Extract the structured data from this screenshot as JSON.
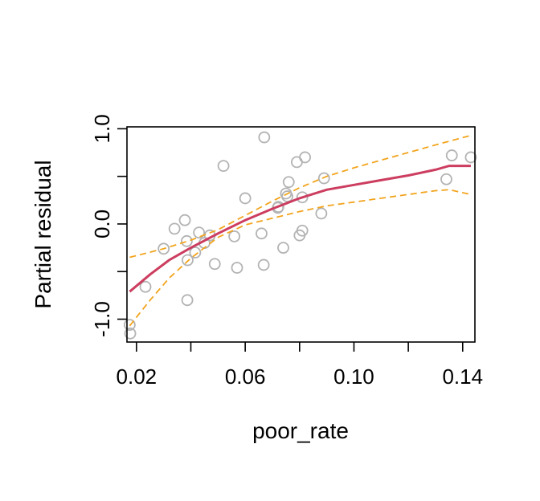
{
  "chart_data": {
    "type": "scatter",
    "xlabel": "poor_rate",
    "ylabel": "Partial residual",
    "xlim": [
      0.0165,
      0.1445
    ],
    "ylim": [
      -1.24,
      1.02
    ],
    "x_ticks": [
      0.02,
      0.04,
      0.06,
      0.08,
      0.1,
      0.12,
      0.14
    ],
    "x_tick_labels": [
      "0.02",
      "",
      "0.06",
      "",
      "0.10",
      "",
      "0.14"
    ],
    "y_ticks": [
      -1.0,
      -0.5,
      0.0,
      0.5,
      1.0
    ],
    "y_tick_labels": [
      "-1.0",
      "",
      "0.0",
      "",
      "1.0"
    ],
    "points": [
      {
        "x": 0.0175,
        "y": -1.06
      },
      {
        "x": 0.0177,
        "y": -1.15
      },
      {
        "x": 0.0233,
        "y": -0.66
      },
      {
        "x": 0.03,
        "y": -0.26
      },
      {
        "x": 0.034,
        "y": -0.05
      },
      {
        "x": 0.0378,
        "y": 0.04
      },
      {
        "x": 0.0385,
        "y": -0.18
      },
      {
        "x": 0.0387,
        "y": -0.8
      },
      {
        "x": 0.0388,
        "y": -0.38
      },
      {
        "x": 0.0416,
        "y": -0.3
      },
      {
        "x": 0.043,
        "y": -0.09
      },
      {
        "x": 0.045,
        "y": -0.2
      },
      {
        "x": 0.047,
        "y": -0.12
      },
      {
        "x": 0.0488,
        "y": -0.42
      },
      {
        "x": 0.052,
        "y": 0.61
      },
      {
        "x": 0.056,
        "y": -0.13
      },
      {
        "x": 0.057,
        "y": -0.46
      },
      {
        "x": 0.06,
        "y": 0.27
      },
      {
        "x": 0.066,
        "y": -0.1
      },
      {
        "x": 0.0668,
        "y": -0.43
      },
      {
        "x": 0.067,
        "y": 0.91
      },
      {
        "x": 0.072,
        "y": 0.17
      },
      {
        "x": 0.0722,
        "y": 0.18
      },
      {
        "x": 0.074,
        "y": -0.25
      },
      {
        "x": 0.075,
        "y": 0.32
      },
      {
        "x": 0.0755,
        "y": 0.29
      },
      {
        "x": 0.076,
        "y": 0.44
      },
      {
        "x": 0.079,
        "y": 0.65
      },
      {
        "x": 0.08,
        "y": -0.12
      },
      {
        "x": 0.081,
        "y": -0.07
      },
      {
        "x": 0.081,
        "y": 0.28
      },
      {
        "x": 0.082,
        "y": 0.7
      },
      {
        "x": 0.088,
        "y": 0.11
      },
      {
        "x": 0.089,
        "y": 0.48
      },
      {
        "x": 0.134,
        "y": 0.47
      },
      {
        "x": 0.136,
        "y": 0.72
      },
      {
        "x": 0.143,
        "y": 0.7
      }
    ],
    "series": [
      {
        "style": "fit",
        "color": "#cc3d5f",
        "x": [
          0.0175,
          0.025,
          0.032,
          0.04,
          0.05,
          0.06,
          0.07,
          0.08,
          0.09,
          0.1,
          0.11,
          0.12,
          0.13,
          0.135,
          0.143
        ],
        "y": [
          -0.71,
          -0.53,
          -0.38,
          -0.25,
          -0.1,
          0.04,
          0.16,
          0.27,
          0.36,
          0.41,
          0.46,
          0.51,
          0.57,
          0.61,
          0.61
        ]
      },
      {
        "style": "upper-band",
        "color": "#f2a41d",
        "x": [
          0.0175,
          0.03,
          0.04,
          0.05,
          0.06,
          0.07,
          0.08,
          0.09,
          0.1,
          0.11,
          0.12,
          0.13,
          0.143
        ],
        "y": [
          -0.35,
          -0.26,
          -0.17,
          -0.06,
          0.09,
          0.24,
          0.38,
          0.5,
          0.59,
          0.67,
          0.75,
          0.83,
          0.93
        ]
      },
      {
        "style": "lower-band",
        "color": "#f2a41d",
        "x": [
          0.0175,
          0.025,
          0.032,
          0.04,
          0.05,
          0.06,
          0.07,
          0.08,
          0.09,
          0.1,
          0.11,
          0.12,
          0.13,
          0.135,
          0.143
        ],
        "y": [
          -1.07,
          -0.8,
          -0.57,
          -0.36,
          -0.14,
          -0.01,
          0.06,
          0.13,
          0.19,
          0.23,
          0.27,
          0.31,
          0.35,
          0.36,
          0.31
        ]
      }
    ],
    "point_color": "#b3b3b3",
    "grid": false
  }
}
